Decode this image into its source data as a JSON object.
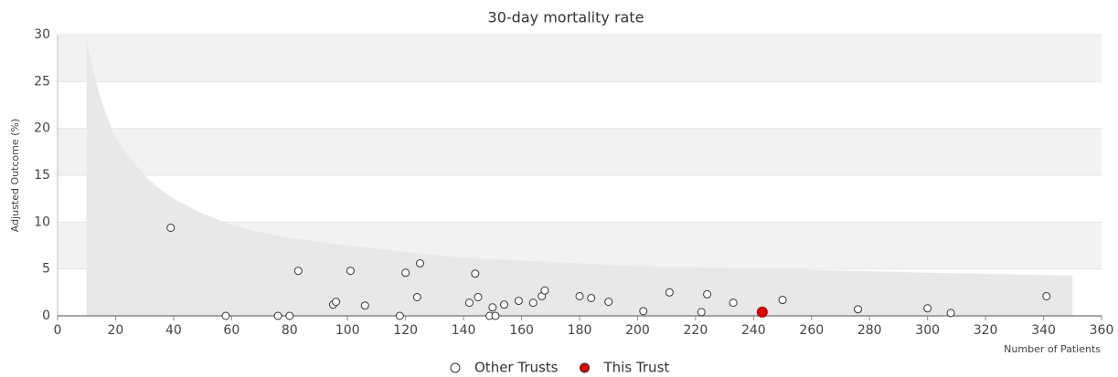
{
  "chart_data": {
    "type": "scatter",
    "title": "30-day mortality rate",
    "x_label": "Number of Patients",
    "y_label": "Adjusted Outcome (%)",
    "xlim": [
      0,
      360
    ],
    "ylim": [
      0,
      30
    ],
    "xticks": [
      0,
      20,
      40,
      60,
      80,
      100,
      120,
      140,
      160,
      180,
      200,
      220,
      240,
      260,
      280,
      300,
      320,
      340,
      360
    ],
    "yticks": [
      0,
      5,
      10,
      15,
      20,
      25,
      30
    ],
    "bands": true,
    "funnel": {
      "color": "#e8e8e8",
      "x": [
        10,
        12,
        15,
        18,
        20,
        25,
        30,
        35,
        40,
        50,
        60,
        70,
        80,
        100,
        120,
        140,
        160,
        200,
        250,
        300,
        350
      ],
      "values": [
        29.5,
        26.5,
        23,
        20.5,
        19,
        16.8,
        15,
        13.6,
        12.5,
        10.9,
        9.7,
        8.9,
        8.3,
        7.5,
        6.8,
        6.2,
        5.9,
        5.3,
        5,
        4.6,
        4.3
      ]
    },
    "legend": "bottom",
    "series": [
      {
        "name": "Other Trusts",
        "color": "#ffffff",
        "x": [
          39,
          58,
          76,
          80,
          83,
          95,
          96,
          101,
          106,
          118,
          120,
          124,
          125,
          142,
          144,
          145,
          149,
          150,
          151,
          154,
          159,
          164,
          167,
          168,
          180,
          184,
          190,
          202,
          211,
          222,
          224,
          233,
          250,
          276,
          300,
          308,
          341
        ],
        "values": [
          9.4,
          0,
          0,
          0,
          4.8,
          1.2,
          1.5,
          4.8,
          1.1,
          0,
          4.6,
          2,
          5.6,
          1.4,
          4.5,
          2,
          0,
          0.9,
          0,
          1.2,
          1.6,
          1.4,
          2.1,
          2.7,
          2.1,
          1.9,
          1.5,
          0.5,
          2.5,
          0.4,
          2.3,
          1.4,
          1.7,
          0.7,
          0.8,
          0.3,
          2.1
        ]
      },
      {
        "name": "This Trust",
        "color": "#e00000",
        "x": [
          243
        ],
        "values": [
          0.4
        ]
      }
    ]
  }
}
